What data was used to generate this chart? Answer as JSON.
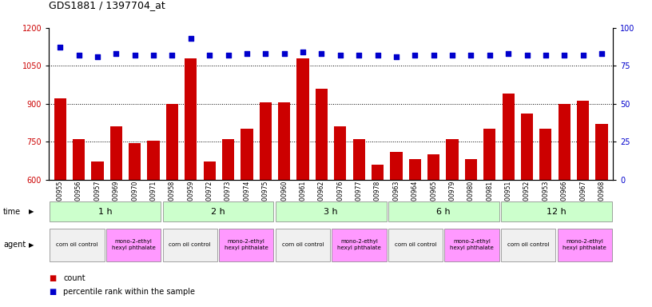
{
  "title": "GDS1881 / 1397704_at",
  "samples": [
    "GSM100955",
    "GSM100956",
    "GSM100957",
    "GSM100969",
    "GSM100970",
    "GSM100971",
    "GSM100958",
    "GSM100959",
    "GSM100972",
    "GSM100973",
    "GSM100974",
    "GSM100975",
    "GSM100960",
    "GSM100961",
    "GSM100962",
    "GSM100976",
    "GSM100977",
    "GSM100978",
    "GSM100963",
    "GSM100964",
    "GSM100965",
    "GSM100979",
    "GSM100980",
    "GSM100981",
    "GSM100951",
    "GSM100952",
    "GSM100953",
    "GSM100966",
    "GSM100967",
    "GSM100968"
  ],
  "counts": [
    920,
    760,
    670,
    810,
    745,
    755,
    900,
    1080,
    670,
    760,
    800,
    905,
    905,
    1080,
    960,
    810,
    760,
    660,
    710,
    680,
    700,
    760,
    680,
    800,
    940,
    860,
    800,
    900,
    910,
    820
  ],
  "percentile_ranks": [
    87,
    82,
    81,
    83,
    82,
    82,
    82,
    93,
    82,
    82,
    83,
    83,
    83,
    84,
    83,
    82,
    82,
    82,
    81,
    82,
    82,
    82,
    82,
    82,
    83,
    82,
    82,
    82,
    82,
    83
  ],
  "ylim_left": [
    600,
    1200
  ],
  "ylim_right": [
    0,
    100
  ],
  "yticks_left": [
    600,
    750,
    900,
    1050,
    1200
  ],
  "yticks_right": [
    0,
    25,
    50,
    75,
    100
  ],
  "bar_color": "#cc0000",
  "dot_color": "#0000cc",
  "time_groups": [
    {
      "label": "1 h",
      "start": 0,
      "end": 6
    },
    {
      "label": "2 h",
      "start": 6,
      "end": 12
    },
    {
      "label": "3 h",
      "start": 12,
      "end": 18
    },
    {
      "label": "6 h",
      "start": 18,
      "end": 24
    },
    {
      "label": "12 h",
      "start": 24,
      "end": 30
    }
  ],
  "agent_groups": [
    {
      "label": "corn oil control",
      "start": 0,
      "end": 3,
      "color": "#f0f0f0"
    },
    {
      "label": "mono-2-ethyl\nhexyl phthalate",
      "start": 3,
      "end": 6,
      "color": "#ff99ff"
    },
    {
      "label": "corn oil control",
      "start": 6,
      "end": 9,
      "color": "#f0f0f0"
    },
    {
      "label": "mono-2-ethyl\nhexyl phthalate",
      "start": 9,
      "end": 12,
      "color": "#ff99ff"
    },
    {
      "label": "corn oil control",
      "start": 12,
      "end": 15,
      "color": "#f0f0f0"
    },
    {
      "label": "mono-2-ethyl\nhexyl phthalate",
      "start": 15,
      "end": 18,
      "color": "#ff99ff"
    },
    {
      "label": "corn oil control",
      "start": 18,
      "end": 21,
      "color": "#f0f0f0"
    },
    {
      "label": "mono-2-ethyl\nhexyl phthalate",
      "start": 21,
      "end": 24,
      "color": "#ff99ff"
    },
    {
      "label": "corn oil control",
      "start": 24,
      "end": 27,
      "color": "#f0f0f0"
    },
    {
      "label": "mono-2-ethyl\nhexyl phthalate",
      "start": 27,
      "end": 30,
      "color": "#ff99ff"
    }
  ],
  "time_color": "#ccffcc",
  "agent_control_color": "#f0f0f0",
  "agent_treat_color": "#ff99ff",
  "bg_color": "#ffffff",
  "legend_count_color": "#cc0000",
  "legend_pct_color": "#0000cc",
  "grid_color": "#000000",
  "grid_lines": [
    750,
    900,
    1050
  ]
}
